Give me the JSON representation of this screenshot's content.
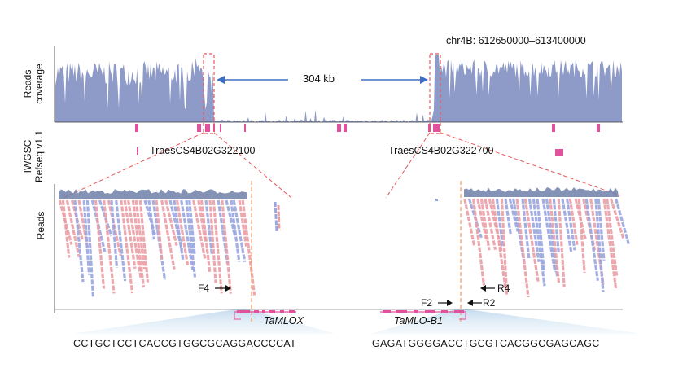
{
  "region": "chr4B: 612650000–613400000",
  "distance": "304 kb",
  "tracks": {
    "coverage_label_1": "Reads",
    "coverage_label_2": "coverage",
    "refseq_label_1": "IWGSC",
    "refseq_label_2": "Refseq v1.1",
    "reads_label": "Reads"
  },
  "genes": {
    "left": "TraesCS4B02G322100",
    "right": "TraesCS4B02G322700",
    "left_detail": "TaMLOX",
    "right_detail": "TaMLO-B1"
  },
  "primers": {
    "f4": "F4",
    "f2": "F2",
    "r2": "R2",
    "r4": "R4"
  },
  "sequences": {
    "left": "CCTGCTCCTCACCGTGGCGCAGGACCCCAT",
    "right": "GAGATGGGGACCTGCGTCACGGCGAGCAGC"
  },
  "colors": {
    "coverage": "#8e9bc8",
    "pink": "#e0529c",
    "read_blue": "#9aa6e0",
    "read_pink": "#ea9fa6",
    "breakpoint": "#f3a268",
    "arrow": "#3e6fc4",
    "zoom": "#e8585a"
  }
}
